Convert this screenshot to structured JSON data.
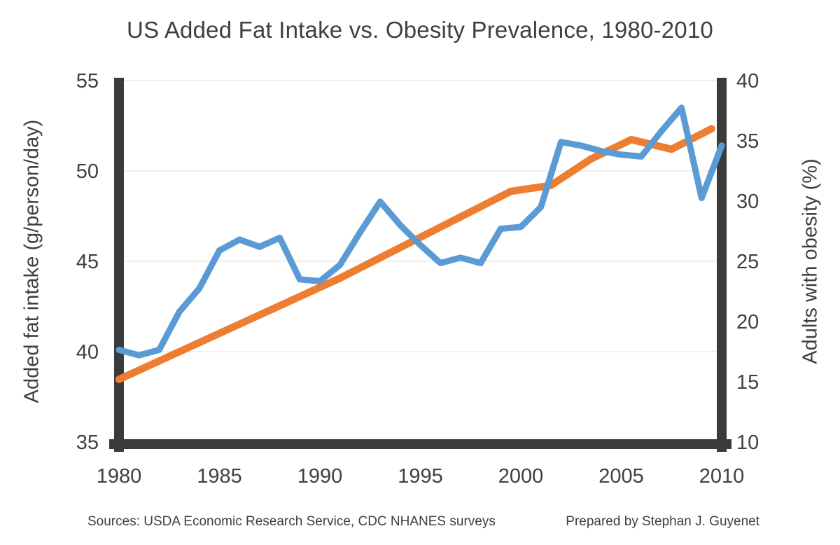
{
  "title": "US Added Fat Intake vs. Obesity Prevalence, 1980-2010",
  "footer": {
    "sources": "Sources: USDA Economic Research Service, CDC NHANES surveys",
    "credit": "Prepared by Stephan J. Guyenet"
  },
  "colors": {
    "fat_line": "#5B9BD5",
    "obesity_line": "#ED7D31",
    "axis_frame": "#3B3B3B",
    "text": "#404040",
    "gridline": "#F0F0F0",
    "background": "#FFFFFF"
  },
  "chart_data": {
    "type": "line",
    "title": "US Added Fat Intake vs. Obesity Prevalence, 1980-2010",
    "grid": true,
    "legend": "none",
    "x_axis": {
      "range": [
        1980,
        2010
      ],
      "ticks": [
        1980,
        1985,
        1990,
        1995,
        2000,
        2005,
        2010
      ]
    },
    "left_axis": {
      "title": "Added fat intake (g/person/day)",
      "range": [
        35,
        55
      ],
      "ticks": [
        55,
        50,
        45,
        40,
        35
      ]
    },
    "right_axis": {
      "title": "Adults with obesity (%)",
      "range": [
        10,
        40
      ],
      "ticks": [
        40,
        35,
        30,
        25,
        20,
        15,
        10
      ]
    },
    "series": [
      {
        "name": "Added fat intake (g/person/day)",
        "axis": "left",
        "color": "#5B9BD5",
        "stroke_width": 9,
        "x": [
          1980,
          1981,
          1982,
          1983,
          1984,
          1985,
          1986,
          1987,
          1988,
          1989,
          1990,
          1991,
          1992,
          1993,
          1994,
          1995,
          1996,
          1997,
          1998,
          1999,
          2000,
          2001,
          2002,
          2003,
          2004,
          2005,
          2006,
          2007,
          2008,
          2009,
          2010
        ],
        "values": [
          40.1,
          39.8,
          40.1,
          42.2,
          43.5,
          45.6,
          46.2,
          45.8,
          46.3,
          44.0,
          43.9,
          44.8,
          46.6,
          48.3,
          47.0,
          45.9,
          44.9,
          45.2,
          44.9,
          46.8,
          46.9,
          48.0,
          51.6,
          51.4,
          51.1,
          50.9,
          50.8,
          52.2,
          53.5,
          48.5,
          51.4
        ]
      },
      {
        "name": "Adults with obesity (%)",
        "axis": "right",
        "color": "#ED7D31",
        "stroke_width": 10.5,
        "points": [
          [
            1980,
            15.2
          ],
          [
            1991,
            23.6
          ],
          [
            1999.5,
            30.8
          ],
          [
            2001.5,
            31.3
          ],
          [
            2003.5,
            33.5
          ],
          [
            2005.5,
            35.1
          ],
          [
            2007.5,
            34.3
          ],
          [
            2009.5,
            36.0
          ]
        ]
      }
    ]
  }
}
